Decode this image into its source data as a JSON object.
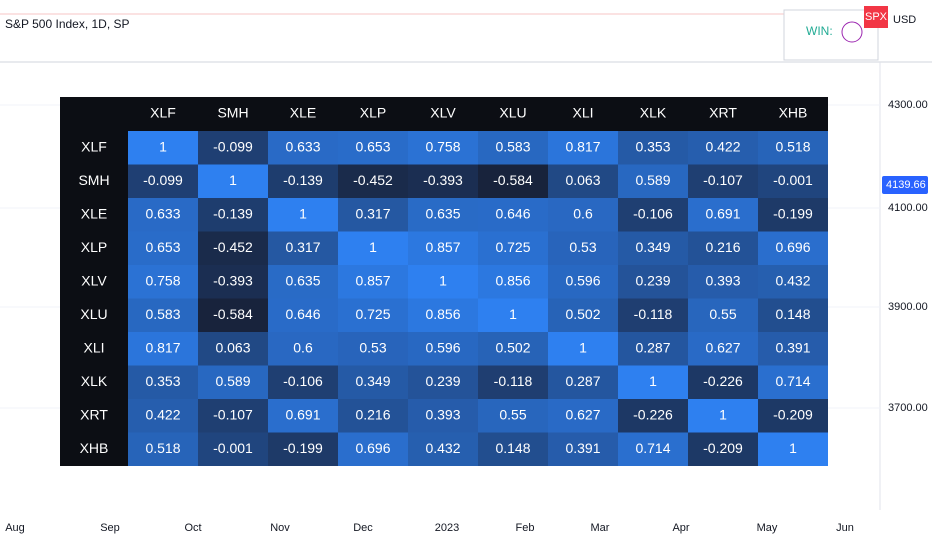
{
  "top_bar": {
    "title": "S&P 500 Index, 1D, SP",
    "status": "WIN:",
    "symbol": "SPX",
    "currency": "USD"
  },
  "price_axis": {
    "labels": [
      "4300.00",
      "4100.00",
      "3900.00",
      "3700.00"
    ],
    "last_price": "4139.66"
  },
  "time_axis": {
    "labels": [
      "Aug",
      "Sep",
      "Oct",
      "Nov",
      "Dec",
      "2023",
      "Feb",
      "Mar",
      "Apr",
      "May",
      "Jun"
    ]
  },
  "table": {
    "headers": [
      "XLF",
      "SMH",
      "XLE",
      "XLP",
      "XLV",
      "XLU",
      "XLI",
      "XLK",
      "XRT",
      "XHB"
    ],
    "rows": [
      [
        "XLF",
        "1",
        "-0.099",
        "0.633",
        "0.653",
        "0.758",
        "0.583",
        "0.817",
        "0.353",
        "0.422",
        "0.518"
      ],
      [
        "SMH",
        "-0.099",
        "1",
        "-0.139",
        "-0.452",
        "-0.393",
        "-0.584",
        "0.063",
        "0.589",
        "-0.107",
        "-0.001"
      ],
      [
        "XLE",
        "0.633",
        "-0.139",
        "1",
        "0.317",
        "0.635",
        "0.646",
        "0.6",
        "-0.106",
        "0.691",
        "-0.199"
      ],
      [
        "XLP",
        "0.653",
        "-0.452",
        "0.317",
        "1",
        "0.857",
        "0.725",
        "0.53",
        "0.349",
        "0.216",
        "0.696"
      ],
      [
        "XLV",
        "0.758",
        "-0.393",
        "0.635",
        "0.857",
        "1",
        "0.856",
        "0.596",
        "0.239",
        "0.393",
        "0.432"
      ],
      [
        "XLU",
        "0.583",
        "-0.584",
        "0.646",
        "0.725",
        "0.856",
        "1",
        "0.502",
        "-0.118",
        "0.55",
        "0.148"
      ],
      [
        "XLI",
        "0.817",
        "0.063",
        "0.6",
        "0.53",
        "0.596",
        "0.502",
        "1",
        "0.287",
        "0.627",
        "0.391"
      ],
      [
        "XLK",
        "0.353",
        "0.589",
        "-0.106",
        "0.349",
        "0.239",
        "-0.118",
        "0.287",
        "1",
        "-0.226",
        "0.714"
      ],
      [
        "XRT",
        "0.422",
        "-0.107",
        "0.691",
        "0.216",
        "0.393",
        "0.55",
        "0.627",
        "-0.226",
        "1",
        "-0.209"
      ],
      [
        "XHB",
        "0.518",
        "-0.001",
        "-0.199",
        "0.696",
        "0.432",
        "0.148",
        "0.391",
        "0.714",
        "-0.209",
        "1"
      ]
    ]
  }
}
